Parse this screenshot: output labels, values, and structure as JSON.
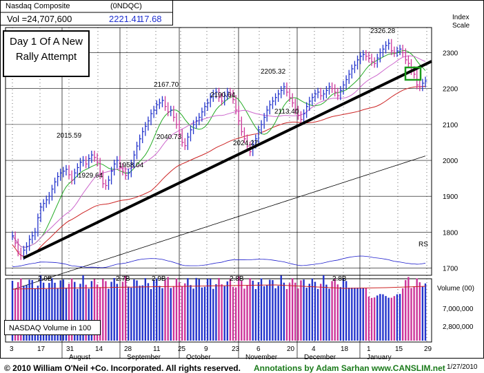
{
  "header": {
    "index_name": "Nasdaq Composite",
    "ticker": "(0NDQC)",
    "volume": "Vol =24,707,600",
    "price": "2221.41",
    "change": "17.68",
    "price_color": "#1e2fd0"
  },
  "annotation": {
    "line1": "Day 1 Of A New",
    "line2": "Rally Attempt"
  },
  "volume_box": "NASDAQ Volume in 100",
  "volume_axis_title": "Volume (00)",
  "footer": {
    "copyright": "© 2010 William O'Neil +Co. Incorporated. All rights reserved.",
    "credit": "Annotations by Adam Sarhan www.CANSLIM.net",
    "date": "1/27/2010",
    "credit_color": "#1a7a1a"
  },
  "colors": {
    "up_bar": "#2233cc",
    "down_bar": "#cc3399",
    "ma50": "#cc2222",
    "ma10": "#22aa22",
    "ma21": "#cc66cc",
    "rs": "#1a1acc"
  },
  "chart_data": {
    "type": "bar",
    "y_axis_title": "Index Scale",
    "yticks": [
      1700,
      1800,
      1900,
      2000,
      2100,
      2200,
      2300
    ],
    "ylim": [
      1680,
      2370
    ],
    "x_ticks": [
      "3",
      "17",
      "31",
      "14",
      "28",
      "11",
      "25",
      "9",
      "23",
      "6",
      "20",
      "4",
      "18",
      "1",
      "15",
      "29"
    ],
    "months": [
      "August",
      "September",
      "October",
      "November",
      "December",
      "January"
    ],
    "grid": true,
    "price_ohlc_close": [
      1790,
      1770,
      1745,
      1735,
      1750,
      1760,
      1780,
      1790,
      1800,
      1840,
      1870,
      1880,
      1890,
      1900,
      1920,
      1940,
      1955,
      1965,
      1970,
      1975,
      1960,
      1945,
      1965,
      1980,
      1995,
      2000,
      1990,
      2005,
      2015,
      2008,
      1995,
      1960,
      1935,
      1930,
      1945,
      1970,
      1990,
      2000,
      1980,
      1970,
      1958,
      1965,
      1990,
      2015,
      2040,
      2060,
      2080,
      2095,
      2110,
      2130,
      2140,
      2155,
      2160,
      2167,
      2150,
      2135,
      2140,
      2120,
      2100,
      2075,
      2050,
      2041,
      2065,
      2085,
      2100,
      2110,
      2120,
      2135,
      2150,
      2160,
      2175,
      2185,
      2190,
      2175,
      2165,
      2180,
      2190,
      2185,
      2170,
      2140,
      2110,
      2080,
      2060,
      2040,
      2024,
      2045,
      2060,
      2085,
      2100,
      2120,
      2140,
      2155,
      2165,
      2175,
      2185,
      2195,
      2205,
      2190,
      2175,
      2160,
      2140,
      2125,
      2114,
      2130,
      2150,
      2165,
      2175,
      2185,
      2190,
      2180,
      2185,
      2195,
      2205,
      2200,
      2190,
      2180,
      2195,
      2210,
      2225,
      2240,
      2255,
      2265,
      2280,
      2290,
      2295,
      2290,
      2285,
      2275,
      2270,
      2285,
      2300,
      2310,
      2320,
      2326,
      2305,
      2300,
      2305,
      2310,
      2300,
      2280,
      2270,
      2250,
      2240,
      2210,
      2205,
      2215,
      2221
    ],
    "labels": [
      {
        "text": "2015.59",
        "value": 2015.59
      },
      {
        "text": "1929.64",
        "value": 1929.64
      },
      {
        "text": "1958.04",
        "value": 1958.04
      },
      {
        "text": "2167.70",
        "value": 2167.7
      },
      {
        "text": "2040.73",
        "value": 2040.73
      },
      {
        "text": "2190.64",
        "value": 2190.64
      },
      {
        "text": "2024.27",
        "value": 2024.27
      },
      {
        "text": "2205.32",
        "value": 2205.32
      },
      {
        "text": "2113.40",
        "value": 2113.4
      },
      {
        "text": "2326.28",
        "value": 2326.28
      }
    ],
    "volume_yticks": [
      "7,000,000",
      "2,800,000"
    ],
    "volume_labels": [
      "2.9B",
      "2.7B",
      "2.9B",
      "2.8B",
      "2.8B"
    ]
  }
}
